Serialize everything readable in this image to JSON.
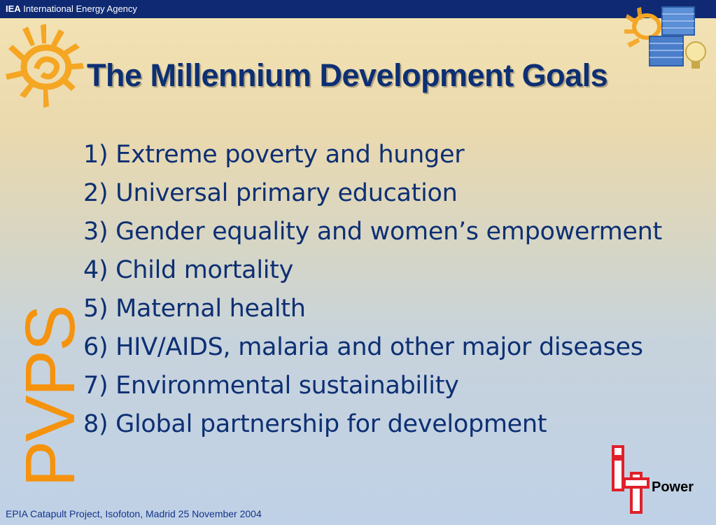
{
  "header": {
    "org_abbr": "IEA",
    "org_name": "International Energy Agency"
  },
  "title": "The Millennium Development Goals",
  "goals": [
    "1) Extreme poverty and hunger",
    "2) Universal primary education",
    "3) Gender equality and women’s empowerment",
    "4) Child mortality",
    "5) Maternal health",
    "6) HIV/AIDS, malaria and other major diseases",
    "7) Environmental sustainability",
    "8) Global partnership for development"
  ],
  "side_label": "PVPS",
  "logo": {
    "name": "it-power-logo",
    "text": "Power"
  },
  "footer": "EPIA Catapult Project, Isofoton, Madrid 25 November 2004",
  "colors": {
    "header_bar": "#0f2a73",
    "title_text": "#0d2f73",
    "accent_orange": "#f5930f",
    "logo_red": "#e0202a"
  }
}
